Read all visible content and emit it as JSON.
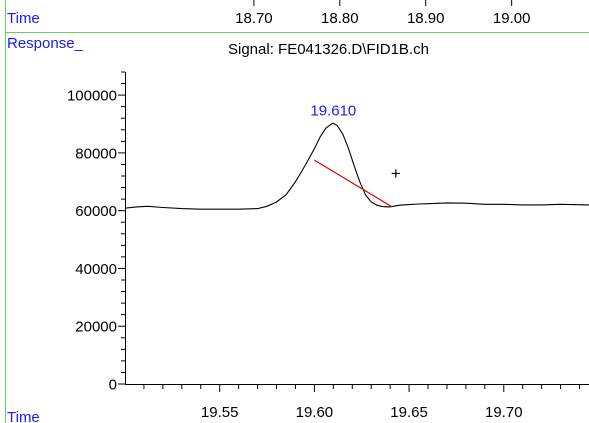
{
  "chart_data": {
    "type": "line",
    "signal_title": "Signal: FE041326.D\\FID1B.ch",
    "top_axis": {
      "label": "Time",
      "ticks": [
        18.7,
        18.8,
        18.9,
        19.0
      ],
      "tick_labels": [
        "18.70",
        "18.80",
        "18.90",
        "19.00"
      ]
    },
    "y_axis": {
      "label": "Response_",
      "ticks": [
        0,
        20000,
        40000,
        60000,
        80000,
        100000
      ],
      "tick_labels": [
        "0",
        "20000",
        "40000",
        "60000",
        "80000",
        "100000"
      ],
      "ylim": [
        0,
        108000
      ]
    },
    "x_axis": {
      "label": "Time",
      "ticks": [
        19.55,
        19.6,
        19.65,
        19.7
      ],
      "tick_labels": [
        "19.55",
        "19.60",
        "19.65",
        "19.70"
      ],
      "xlim": [
        19.5,
        19.745
      ]
    },
    "series": [
      {
        "x": [
          19.5,
          19.506,
          19.512,
          19.52,
          19.53,
          19.54,
          19.55,
          19.56,
          19.57,
          19.575,
          19.58,
          19.585,
          19.59,
          19.595,
          19.6,
          19.603,
          19.606,
          19.609,
          19.61,
          19.612,
          19.615,
          19.618,
          19.621,
          19.624,
          19.627,
          19.63,
          19.633,
          19.636,
          19.639,
          19.641,
          19.645,
          19.65,
          19.655,
          19.66,
          19.67,
          19.68,
          19.69,
          19.7,
          19.71,
          19.72,
          19.73,
          19.745
        ],
        "y": [
          60900,
          61300,
          61500,
          61100,
          60700,
          60500,
          60500,
          60500,
          60700,
          61500,
          63000,
          65500,
          70000,
          75500,
          81500,
          85500,
          88500,
          90000,
          90200,
          89500,
          86500,
          81500,
          75500,
          70000,
          65500,
          63000,
          61900,
          61400,
          61300,
          61400,
          61900,
          62100,
          62300,
          62400,
          62700,
          62600,
          62200,
          62200,
          62000,
          62000,
          62200,
          62000
        ]
      }
    ],
    "peak_label": "19.610",
    "peak_x": 19.61,
    "peak_y": 90200,
    "baseline": {
      "x": [
        19.6,
        19.641
      ],
      "y": [
        77500,
        61300
      ]
    },
    "cursor": {
      "x": 19.643,
      "y": 73000,
      "symbol": "+"
    },
    "colors": {
      "trace": "#000000",
      "baseline": "#e00000",
      "peak_label": "#1a1aff",
      "axis_label": "#1a1aff",
      "frame": "#66cc66"
    }
  }
}
